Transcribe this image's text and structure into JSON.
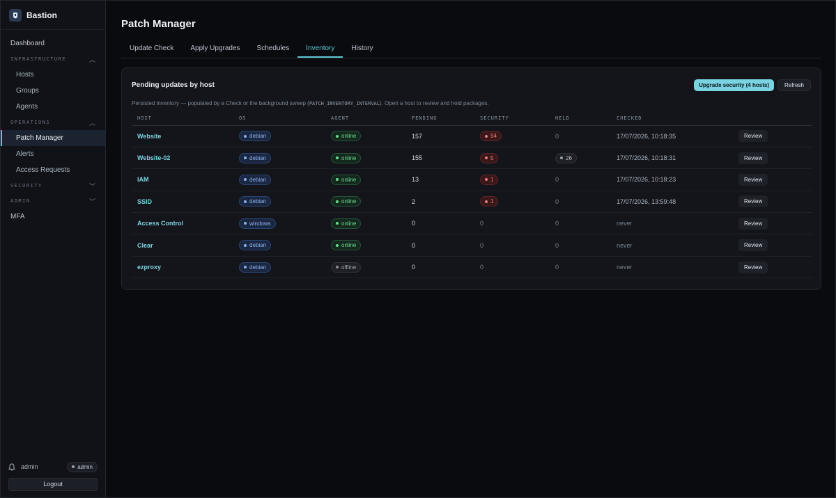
{
  "app": {
    "title": "Bastion"
  },
  "sidebar": {
    "dashboard": "Dashboard",
    "sections": {
      "infrastructure": {
        "label": "INFRASTRUCTURE",
        "items": [
          "Hosts",
          "Groups",
          "Agents"
        ]
      },
      "operations": {
        "label": "OPERATIONS",
        "items": [
          "Patch Manager",
          "Alerts",
          "Access Requests"
        ]
      },
      "security": {
        "label": "SECURITY"
      },
      "admin": {
        "label": "ADMIN"
      }
    },
    "mfa": "MFA",
    "active_item": "Patch Manager",
    "user": {
      "name": "admin",
      "role": "admin"
    },
    "logout_label": "Logout"
  },
  "header": {
    "title": "Patch Manager",
    "tabs": [
      "Update Check",
      "Apply Upgrades",
      "Schedules",
      "Inventory",
      "History"
    ],
    "active_tab": "Inventory"
  },
  "card": {
    "title": "Pending updates by host",
    "upgrade_label": "Upgrade security (4 hosts)",
    "refresh_label": "Refresh",
    "desc_before": "Persisted inventory — populated by a Check or the background sweep (",
    "desc_code": "PATCH_INVENTORY_INTERVAL",
    "desc_after": "). Open a host to review and hold packages.",
    "columns": [
      "HOST",
      "OS",
      "AGENT",
      "PENDING",
      "SECURITY",
      "HELD",
      "CHECKED"
    ],
    "review_label": "Review",
    "rows": [
      {
        "host": "Website",
        "os": "debian",
        "agent": "online",
        "pending": "157",
        "security": "94",
        "held": "0",
        "checked": "17/07/2026, 10:18:35"
      },
      {
        "host": "Website-02",
        "os": "debian",
        "agent": "online",
        "pending": "155",
        "security": "5",
        "held": "26",
        "checked": "17/07/2026, 10:18:31"
      },
      {
        "host": "IAM",
        "os": "debian",
        "agent": "online",
        "pending": "13",
        "security": "1",
        "held": "0",
        "checked": "17/07/2026, 10:18:23"
      },
      {
        "host": "SSID",
        "os": "debian",
        "agent": "online",
        "pending": "2",
        "security": "1",
        "held": "0",
        "checked": "17/07/2026, 13:59:48"
      },
      {
        "host": "Access Control",
        "os": "windows",
        "agent": "online",
        "pending": "0",
        "security": "0",
        "held": "0",
        "checked": "never"
      },
      {
        "host": "Clear",
        "os": "debian",
        "agent": "online",
        "pending": "0",
        "security": "0",
        "held": "0",
        "checked": "never"
      },
      {
        "host": "ezproxy",
        "os": "debian",
        "agent": "offline",
        "pending": "0",
        "security": "0",
        "held": "0",
        "checked": "never"
      }
    ]
  },
  "colors": {
    "accent": "#5ec8d6",
    "online": "#6fd892",
    "security": "#f07c7c",
    "os": "#8fb2f0"
  }
}
